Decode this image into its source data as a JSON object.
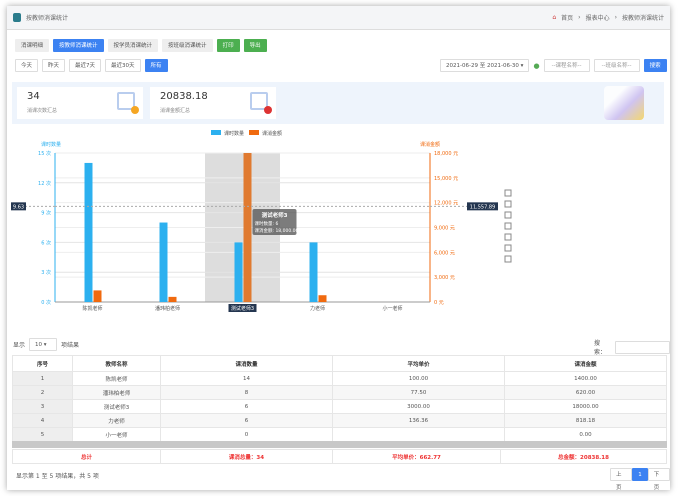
{
  "header": {
    "title": "按教师消课统计",
    "breadcrumb": [
      "首页",
      "报表中心",
      "按教师消课统计"
    ]
  },
  "tabs": [
    "消课明细",
    "按教师消课统计",
    "按学员消课统计",
    "按班级消课统计"
  ],
  "actions": {
    "print": "打印",
    "export": "导出"
  },
  "ranges": [
    "今天",
    "昨天",
    "最近7天",
    "最近30天",
    "所有"
  ],
  "filters": {
    "date": "2021-06-29 至 2021-06-30",
    "course_placeholder": "--课程名称--",
    "class_placeholder": "--班级名称--",
    "search": "搜索"
  },
  "stats": [
    {
      "value": "34",
      "label": "消课次数汇总"
    },
    {
      "value": "20838.18",
      "label": "消课金额汇总"
    }
  ],
  "chart_data": {
    "type": "bar",
    "categories": [
      "陈凯老师",
      "潘玮柏老师",
      "测试老师3",
      "力老师",
      "小一老师"
    ],
    "series": [
      {
        "name": "课时数量",
        "axis": "left",
        "color": "#2cb0ef",
        "values": [
          14,
          8,
          6,
          6,
          0
        ]
      },
      {
        "name": "课消金额",
        "axis": "right",
        "color": "#f06a0f",
        "values": [
          1400,
          620,
          18000,
          818.18,
          0
        ]
      }
    ],
    "ylabel_left": "课时数量",
    "ylabel_right": "课消金额",
    "yticks_left": [
      "0 次",
      "3 次",
      "6 次",
      "9 次",
      "12 次",
      "15 次"
    ],
    "ylim_left": [
      0,
      15
    ],
    "yticks_right": [
      "0 元",
      "3,000 元",
      "6,000 元",
      "9,000 元",
      "12,000 元",
      "15,000 元",
      "18,000 元"
    ],
    "ylim_right": [
      0,
      18000
    ],
    "pointer": {
      "left": "9.63",
      "right": "11,557.89",
      "category": "测试老师3"
    },
    "tooltip": {
      "title": "测试老师3",
      "line1": "课时数量: 6",
      "line2": "课消金额: 18,000.00"
    },
    "legend": "top",
    "grid": true
  },
  "table": {
    "show": "显示",
    "length": "10",
    "results": "项结果",
    "search_label": "搜索：",
    "columns": [
      "序号",
      "教师名称",
      "课消数量",
      "平均单价",
      "课消金额"
    ],
    "rows": [
      [
        "1",
        "陈凯老师",
        "14",
        "100.00",
        "1400.00"
      ],
      [
        "2",
        "潘玮柏老师",
        "8",
        "77.50",
        "620.00"
      ],
      [
        "3",
        "测试老师3",
        "6",
        "3000.00",
        "18000.00"
      ],
      [
        "4",
        "力老师",
        "6",
        "136.36",
        "818.18"
      ],
      [
        "5",
        "小一老师",
        "0",
        "",
        "0.00"
      ]
    ],
    "footer": [
      "总计",
      "课消总量：34",
      "平均单价：662.77",
      "总金额：20838.18"
    ],
    "info": "显示第 1 至 5 项结果，共 5 项",
    "prev": "上页",
    "page": "1",
    "next": "下页"
  }
}
